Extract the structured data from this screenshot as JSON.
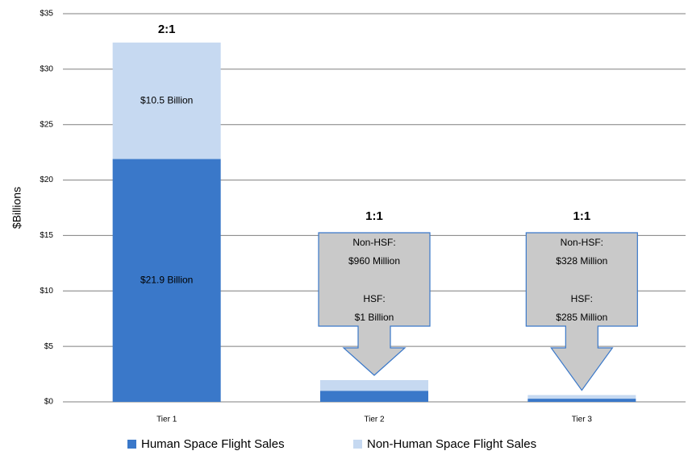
{
  "chart_data": {
    "type": "stacked_bar",
    "categories": [
      "Tier 1",
      "Tier 2",
      "Tier 3"
    ],
    "series": [
      {
        "name": "Human Space Flight Sales",
        "color": "#3a78c9",
        "values": [
          21.9,
          1,
          0.285
        ],
        "value_labels": [
          "$21.9 Billion",
          "$1 Billion",
          "$285 Million"
        ]
      },
      {
        "name": "Non-Human Space Flight Sales",
        "color": "#c6d9f1",
        "values": [
          10.5,
          0.96,
          0.328
        ],
        "value_labels": [
          "$10.5 Billion",
          "$960 Million",
          "$328 Million"
        ]
      }
    ],
    "y_label": "$Billions",
    "ylim": [
      0,
      35
    ],
    "yticks": [
      {
        "value": 0,
        "label": "$0"
      },
      {
        "value": 5,
        "label": "$5"
      },
      {
        "value": 10,
        "label": "$10"
      },
      {
        "value": 15,
        "label": "$15"
      },
      {
        "value": 20,
        "label": "$20"
      },
      {
        "value": 25,
        "label": "$25"
      },
      {
        "value": 30,
        "label": "$30"
      },
      {
        "value": 35,
        "label": "$35"
      }
    ],
    "grid": true,
    "legend": "bottom",
    "annotations": {
      "ratios": [
        "2:1",
        "1:1",
        "1:1"
      ],
      "callout_prefixes": [
        "Non-HSF:",
        "HSF:"
      ]
    }
  }
}
